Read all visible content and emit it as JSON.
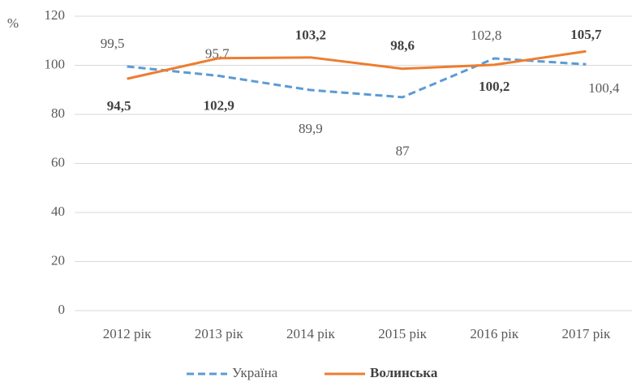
{
  "chart_data": {
    "type": "line",
    "y_label": "%",
    "categories": [
      "2012 рік",
      "2013 рік",
      "2014 рік",
      "2015 рік",
      "2016 рік",
      "2017 рік"
    ],
    "series": [
      {
        "name": "Україна",
        "color": "#5b9bd5",
        "dashed": true,
        "bold_labels": false,
        "values": [
          99.5,
          95.7,
          89.9,
          87,
          102.8,
          100.4
        ],
        "value_labels": [
          "99,5",
          "95,7",
          "89,9",
          "87",
          "102,8",
          "100,4"
        ]
      },
      {
        "name": "Волинська",
        "color": "#ed7d31",
        "dashed": false,
        "bold_labels": true,
        "values": [
          94.5,
          102.9,
          103.2,
          98.6,
          100.2,
          105.7
        ],
        "value_labels": [
          "94,5",
          "102,9",
          "103,2",
          "98,6",
          "100,2",
          "105,7"
        ]
      }
    ],
    "ylim": [
      0,
      120
    ],
    "yticks": [
      0,
      20,
      40,
      60,
      80,
      100,
      120
    ],
    "grid": true,
    "legend": "bottom"
  }
}
